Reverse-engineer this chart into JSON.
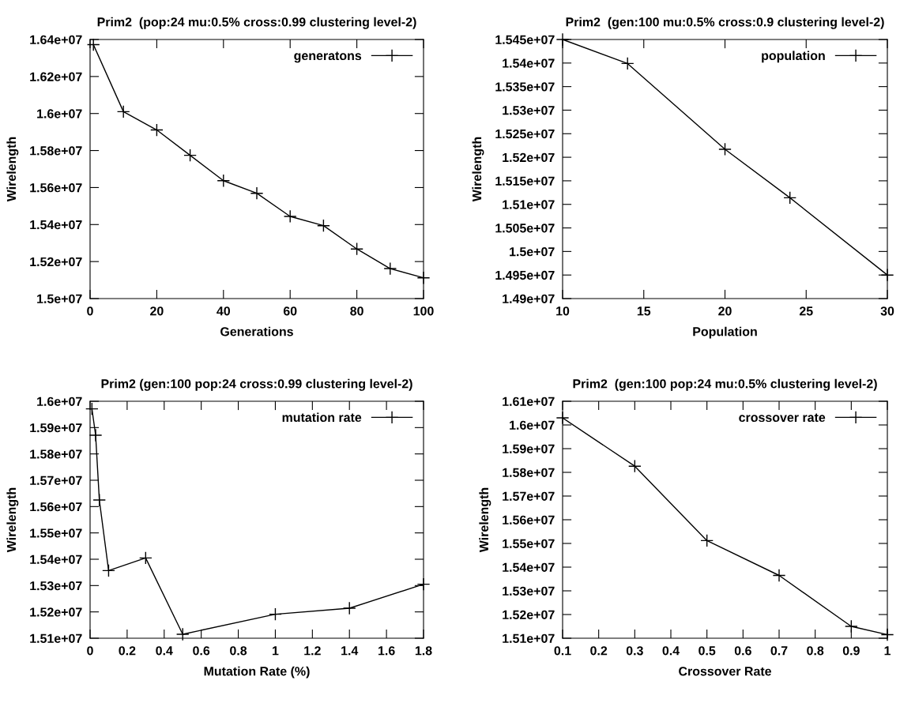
{
  "chart_data": [
    {
      "type": "line",
      "title": "Prim2  (pop:24 mu:0.5% cross:0.99 clustering level-2)",
      "xlabel": "Generations",
      "ylabel": "Wirelength",
      "marker": "cross",
      "line_style": "solid",
      "legend": "top right",
      "grid": false,
      "x": [
        1,
        10,
        20,
        30,
        40,
        50,
        60,
        70,
        80,
        90,
        100
      ],
      "series": [
        {
          "name": "generatons",
          "color": "#000000",
          "values": [
            16372000,
            16010000,
            15911000,
            15774000,
            15637000,
            15569000,
            15444000,
            15394000,
            15268000,
            15162000,
            15112000
          ]
        }
      ],
      "xlim": [
        0,
        100
      ],
      "xticks": [
        0,
        20,
        40,
        60,
        80,
        100
      ],
      "ylim": [
        15000000,
        16400000
      ],
      "yticks": [
        {
          "value": 15000000,
          "label": "1.5e+07"
        },
        {
          "value": 15200000,
          "label": "1.52e+07"
        },
        {
          "value": 15400000,
          "label": "1.54e+07"
        },
        {
          "value": 15600000,
          "label": "1.56e+07"
        },
        {
          "value": 15800000,
          "label": "1.58e+07"
        },
        {
          "value": 16000000,
          "label": "1.6e+07"
        },
        {
          "value": 16200000,
          "label": "1.62e+07"
        },
        {
          "value": 16400000,
          "label": "1.64e+07"
        }
      ]
    },
    {
      "type": "line",
      "title": "Prim2  (gen:100 mu:0.5% cross:0.9 clustering level-2)",
      "xlabel": "Population",
      "ylabel": "Wirelength",
      "marker": "cross",
      "line_style": "solid",
      "legend": "top right",
      "grid": false,
      "x": [
        10,
        14,
        20,
        24,
        30
      ],
      "series": [
        {
          "name": "population",
          "color": "#000000",
          "values": [
            15450000,
            15399000,
            15217000,
            15114000,
            14950000
          ]
        }
      ],
      "xlim": [
        10,
        30
      ],
      "xticks": [
        10,
        15,
        20,
        25,
        30
      ],
      "ylim": [
        14900000,
        15450000
      ],
      "yticks": [
        {
          "value": 14900000,
          "label": "1.49e+07"
        },
        {
          "value": 14950000,
          "label": "1.495e+07"
        },
        {
          "value": 15000000,
          "label": "1.5e+07"
        },
        {
          "value": 15050000,
          "label": "1.505e+07"
        },
        {
          "value": 15100000,
          "label": "1.51e+07"
        },
        {
          "value": 15150000,
          "label": "1.515e+07"
        },
        {
          "value": 15200000,
          "label": "1.52e+07"
        },
        {
          "value": 15250000,
          "label": "1.525e+07"
        },
        {
          "value": 15300000,
          "label": "1.53e+07"
        },
        {
          "value": 15350000,
          "label": "1.535e+07"
        },
        {
          "value": 15400000,
          "label": "1.54e+07"
        },
        {
          "value": 15450000,
          "label": "1.545e+07"
        }
      ]
    },
    {
      "type": "line",
      "title": "Prim2 (gen:100 pop:24 cross:0.99 clustering level-2)",
      "xlabel": "Mutation Rate (%)",
      "ylabel": "Wirelength",
      "marker": "cross",
      "line_style": "solid",
      "legend": "top right",
      "grid": false,
      "x": [
        0.01,
        0.03,
        0.05,
        0.1,
        0.3,
        0.5,
        1.0,
        1.4,
        1.8
      ],
      "series": [
        {
          "name": "mutation rate",
          "color": "#000000",
          "values": [
            15971000,
            15871000,
            15625000,
            15357000,
            15405000,
            15115000,
            15191000,
            15214000,
            15305000
          ]
        }
      ],
      "xlim": [
        0,
        1.8
      ],
      "xticks": [
        0,
        0.2,
        0.4,
        0.6,
        0.8,
        1,
        1.2,
        1.4,
        1.6,
        1.8
      ],
      "ylim": [
        15100000,
        16000000
      ],
      "yticks": [
        {
          "value": 15100000,
          "label": "1.51e+07"
        },
        {
          "value": 15200000,
          "label": "1.52e+07"
        },
        {
          "value": 15300000,
          "label": "1.53e+07"
        },
        {
          "value": 15400000,
          "label": "1.54e+07"
        },
        {
          "value": 15500000,
          "label": "1.55e+07"
        },
        {
          "value": 15600000,
          "label": "1.56e+07"
        },
        {
          "value": 15700000,
          "label": "1.57e+07"
        },
        {
          "value": 15800000,
          "label": "1.58e+07"
        },
        {
          "value": 15900000,
          "label": "1.59e+07"
        },
        {
          "value": 16000000,
          "label": "1.6e+07"
        }
      ]
    },
    {
      "type": "line",
      "title": "Prim2  (gen:100 pop:24 mu:0.5% clustering level-2)",
      "xlabel": "Crossover Rate",
      "ylabel": "Wirelength",
      "marker": "cross",
      "line_style": "solid",
      "legend": "top right",
      "grid": false,
      "x": [
        0.1,
        0.3,
        0.5,
        0.7,
        0.9,
        1.0
      ],
      "series": [
        {
          "name": "crossover rate",
          "color": "#000000",
          "values": [
            16030000,
            15826000,
            15512000,
            15365000,
            15150000,
            15115000
          ]
        }
      ],
      "xlim": [
        0.1,
        1
      ],
      "xticks": [
        0.1,
        0.2,
        0.3,
        0.4,
        0.5,
        0.6,
        0.7,
        0.8,
        0.9,
        1
      ],
      "ylim": [
        15100000,
        16100000
      ],
      "yticks": [
        {
          "value": 15100000,
          "label": "1.51e+07"
        },
        {
          "value": 15200000,
          "label": "1.52e+07"
        },
        {
          "value": 15300000,
          "label": "1.53e+07"
        },
        {
          "value": 15400000,
          "label": "1.54e+07"
        },
        {
          "value": 15500000,
          "label": "1.55e+07"
        },
        {
          "value": 15600000,
          "label": "1.56e+07"
        },
        {
          "value": 15700000,
          "label": "1.57e+07"
        },
        {
          "value": 15800000,
          "label": "1.58e+07"
        },
        {
          "value": 15900000,
          "label": "1.59e+07"
        },
        {
          "value": 16000000,
          "label": "1.6e+07"
        },
        {
          "value": 16100000,
          "label": "1.61e+07"
        }
      ]
    }
  ]
}
